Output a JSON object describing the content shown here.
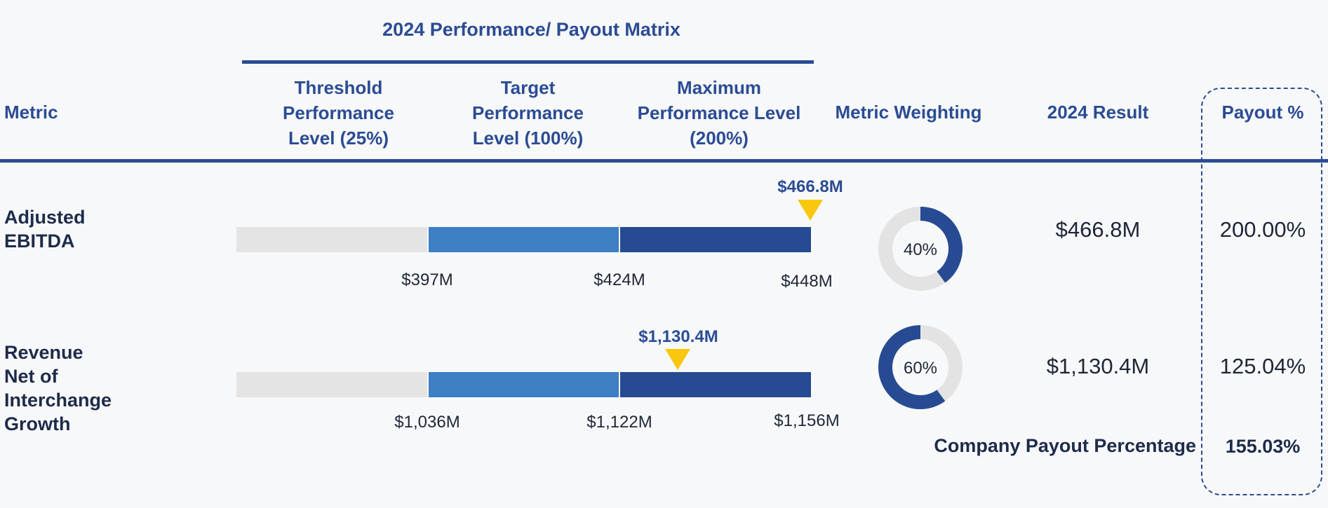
{
  "title": "2024 Performance/ Payout Matrix",
  "headers": {
    "metric": "Metric",
    "threshold": "Threshold Performance Level (25%)",
    "target": "Target Performance Level (100%)",
    "maximum": "Maximum Performance Level (200%)",
    "weighting": "Metric Weighting",
    "result": "2024 Result",
    "payout": "Payout %"
  },
  "colors": {
    "threshold": "#e4e4e4",
    "target": "#3c7fc4",
    "maximum": "#274b92",
    "marker": "#f9c80e",
    "header": "#2b4c94"
  },
  "chart_data": [
    {
      "type": "bar",
      "metric": "Adjusted EBITDA",
      "tick_labels": [
        "$397M",
        "$424M",
        "$448M"
      ],
      "segments": [
        "threshold",
        "target",
        "maximum"
      ],
      "marker_label": "$466.8M",
      "marker_position_fraction": 1.0,
      "weighting": 40,
      "weighting_label": "40%",
      "result": "$466.8M",
      "payout": "200.00%"
    },
    {
      "type": "bar",
      "metric": "Revenue Net of Interchange Growth",
      "tick_labels": [
        "$1,036M",
        "$1,122M",
        "$1,156M"
      ],
      "segments": [
        "threshold",
        "target",
        "maximum"
      ],
      "marker_label": "$1,130.4M",
      "marker_position_fraction": 0.774,
      "weighting": 60,
      "weighting_label": "60%",
      "result": "$1,130.4M",
      "payout": "125.04%"
    }
  ],
  "footer": {
    "label": "Company Payout Percentage",
    "value": "155.03%"
  }
}
